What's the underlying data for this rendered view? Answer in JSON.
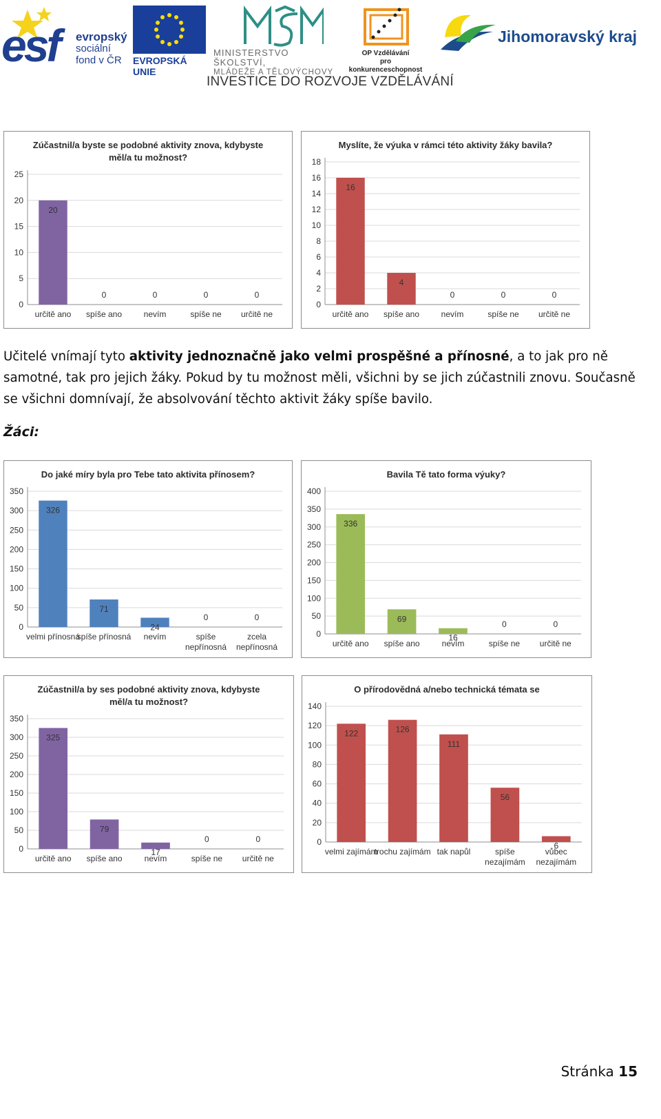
{
  "header": {
    "esf_logo_word": "esf",
    "esf_text": [
      "evropský",
      "sociální",
      "fond v ČR"
    ],
    "eu_caption": "EVROPSKÁ UNIE",
    "msmt_text": [
      "MINISTERSTVO ŠKOLSTVÍ,",
      "MLÁDEŽE A TĚLOVÝCHOVY"
    ],
    "op_text": [
      "OP Vzdělávání",
      "pro konkurenceschopnost"
    ],
    "jmk_text": "Jihomoravský kraj",
    "investice": "INVESTICE DO ROZVOJE VZDĚLÁVÁNÍ"
  },
  "paragraph": {
    "p1": "Učitelé vnímají tyto ",
    "p2_bold": "aktivity jednoznačně jako velmi prospěšné a přínosné",
    "p3": ", a to jak pro ně samotné, tak pro jejich žáky. Pokud by tu možnost měli, všichni by se jich zúčastnili znovu. Současně se všichni domnívají, že absolvování těchto aktivit žáky spíše bavilo."
  },
  "students_heading": "Žáci:",
  "footer": {
    "label": "Stránka",
    "page": "15"
  },
  "colors": {
    "purple": "#8064a2",
    "red": "#c0504d",
    "blue": "#4f81bd",
    "green": "#9bbb59",
    "grid": "#d9d9d9",
    "axis": "#8c8c8c"
  },
  "chart_data": [
    {
      "type": "bar",
      "title": [
        "Zúčastnil/a byste se podobné aktivity znova, kdybyste",
        "měl/a tu možnost?"
      ],
      "categories": [
        [
          "určitě ano"
        ],
        [
          "spíše ano"
        ],
        [
          "nevím"
        ],
        [
          "spíše ne"
        ],
        [
          "určitě ne"
        ]
      ],
      "values": [
        20,
        0,
        0,
        0,
        0
      ],
      "ylim": [
        0,
        25
      ],
      "yticks": [
        0,
        5,
        10,
        15,
        20,
        25
      ],
      "color": "purple",
      "grid": true
    },
    {
      "type": "bar",
      "title": [
        "Myslíte, že výuka v rámci této aktivity žáky bavila?"
      ],
      "categories": [
        [
          "určitě ano"
        ],
        [
          "spíše ano"
        ],
        [
          "nevím"
        ],
        [
          "spíše ne"
        ],
        [
          "určitě ne"
        ]
      ],
      "values": [
        16,
        4,
        0,
        0,
        0
      ],
      "ylim": [
        0,
        18
      ],
      "yticks": [
        0,
        2,
        4,
        6,
        8,
        10,
        12,
        14,
        16,
        18
      ],
      "color": "red",
      "grid": true
    },
    {
      "type": "bar",
      "title": [
        "Do jaké míry byla pro Tebe tato aktivita přínosem?"
      ],
      "categories": [
        [
          "velmi přínosná"
        ],
        [
          "spíše přínosná"
        ],
        [
          "nevím"
        ],
        [
          "spíše",
          "nepřínosná"
        ],
        [
          "zcela",
          "nepřínosná"
        ]
      ],
      "values": [
        326,
        71,
        24,
        0,
        0
      ],
      "ylim": [
        0,
        350
      ],
      "yticks": [
        0,
        50,
        100,
        150,
        200,
        250,
        300,
        350
      ],
      "color": "blue",
      "grid": true
    },
    {
      "type": "bar",
      "title": [
        "Bavila Tě tato forma výuky?"
      ],
      "categories": [
        [
          "určitě ano"
        ],
        [
          "spíše ano"
        ],
        [
          "nevím"
        ],
        [
          "spíše ne"
        ],
        [
          "určitě ne"
        ]
      ],
      "values": [
        336,
        69,
        16,
        0,
        0
      ],
      "ylim": [
        0,
        400
      ],
      "yticks": [
        0,
        50,
        100,
        150,
        200,
        250,
        300,
        350,
        400
      ],
      "color": "green",
      "grid": true
    },
    {
      "type": "bar",
      "title": [
        "Zúčastnil/a by ses podobné aktivity znova, kdybyste",
        "měl/a tu možnost?"
      ],
      "categories": [
        [
          "určitě ano"
        ],
        [
          "spíše ano"
        ],
        [
          "nevím"
        ],
        [
          "spíše ne"
        ],
        [
          "určitě ne"
        ]
      ],
      "values": [
        325,
        79,
        17,
        0,
        0
      ],
      "ylim": [
        0,
        350
      ],
      "yticks": [
        0,
        50,
        100,
        150,
        200,
        250,
        300,
        350
      ],
      "color": "purple",
      "grid": true
    },
    {
      "type": "bar",
      "title": [
        "O přírodovědná a/nebo technická témata se"
      ],
      "categories": [
        [
          "velmi zajímám"
        ],
        [
          "trochu zajímám"
        ],
        [
          "tak napůl"
        ],
        [
          "spíše",
          "nezajímám"
        ],
        [
          "vůbec",
          "nezajímám"
        ]
      ],
      "values": [
        122,
        126,
        111,
        56,
        6
      ],
      "ylim": [
        0,
        140
      ],
      "yticks": [
        0,
        20,
        40,
        60,
        80,
        100,
        120,
        140
      ],
      "color": "red",
      "grid": true
    }
  ]
}
